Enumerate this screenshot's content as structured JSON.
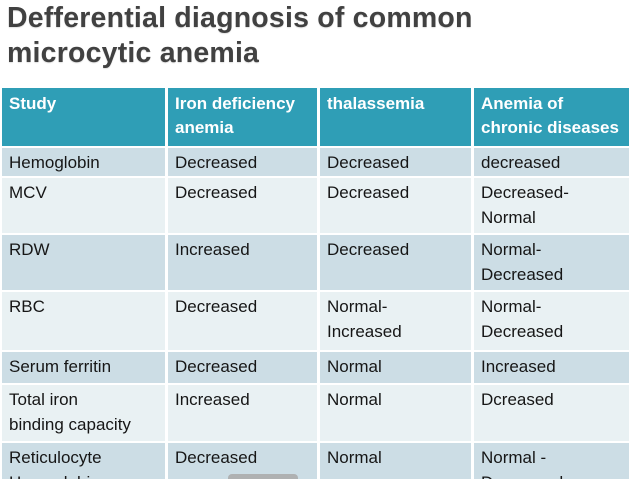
{
  "slide": {
    "title": "Defferential diagnosis of common\nmicrocytic anemia"
  },
  "table": {
    "headers": [
      "Study",
      "Iron deficiency\nanemia",
      "thalassemia",
      "Anemia of\nchronic diseases"
    ],
    "rows": [
      {
        "cells": [
          "Hemoglobin",
          "Decreased",
          "Decreased",
          "decreased"
        ]
      },
      {
        "cells": [
          "MCV",
          "Decreased",
          "Decreased",
          "Decreased-\nNormal"
        ]
      },
      {
        "cells": [
          "RDW",
          "Increased",
          "Decreased",
          "Normal-\nDecreased"
        ]
      },
      {
        "cells": [
          "RBC",
          "Decreased",
          "Normal-\nIncreased",
          "Normal-\nDecreased"
        ]
      },
      {
        "cells": [
          "Serum ferritin",
          "Decreased",
          "Normal",
          "Increased"
        ]
      },
      {
        "cells": [
          "Total iron\nbinding capacity",
          "Increased",
          "Normal",
          "Dcreased"
        ]
      },
      {
        "cells": [
          "Reticulocyte\nHemoglobin",
          "Decreased",
          "Normal",
          "Normal -\nDecreased"
        ]
      }
    ]
  },
  "colors": {
    "header_bg": "#2f9eb6",
    "row_dark": "#ccdde5",
    "row_light": "#e9f1f3",
    "title_text": "#414141",
    "header_text": "#ffffff",
    "cell_text": "#161616",
    "scroll_thumb": "#a9a9a9"
  }
}
